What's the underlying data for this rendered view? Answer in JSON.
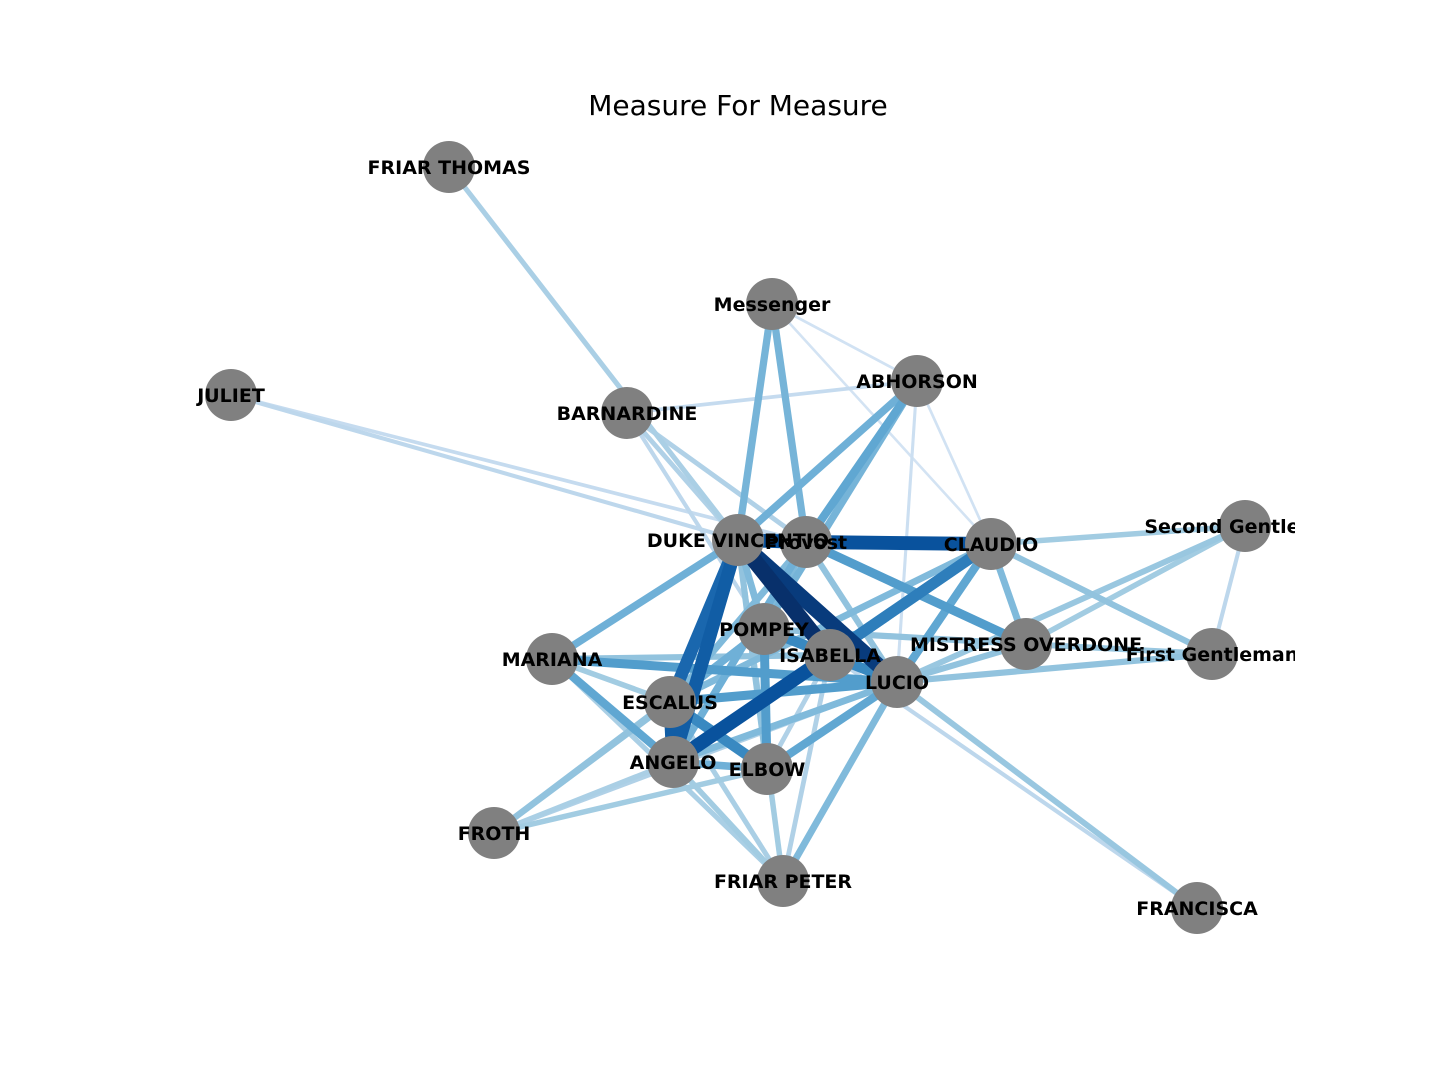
{
  "title": "Measure For Measure",
  "node_color": "#808080",
  "edge_colormap": "Blues",
  "nodes": [
    {
      "id": "FRIAR THOMAS",
      "label": "FRIAR THOMAS"
    },
    {
      "id": "Messenger",
      "label": "Messenger"
    },
    {
      "id": "ABHORSON",
      "label": "ABHORSON"
    },
    {
      "id": "JULIET",
      "label": "JULIET"
    },
    {
      "id": "BARNARDINE",
      "label": "BARNARDINE"
    },
    {
      "id": "DUKE VINCENTIO",
      "label": "DUKE VINCENTIO"
    },
    {
      "id": "Provost",
      "label": "Provost"
    },
    {
      "id": "CLAUDIO",
      "label": "CLAUDIO"
    },
    {
      "id": "Second Gentleman",
      "label": "Second Gentleman"
    },
    {
      "id": "POMPEY",
      "label": "POMPEY"
    },
    {
      "id": "ISABELLA",
      "label": "ISABELLA"
    },
    {
      "id": "MISTRESS OVERDONE",
      "label": "MISTRESS OVERDONE"
    },
    {
      "id": "First Gentleman",
      "label": "First Gentleman"
    },
    {
      "id": "MARIANA",
      "label": "MARIANA"
    },
    {
      "id": "LUCIO",
      "label": "LUCIO"
    },
    {
      "id": "ESCALUS",
      "label": "ESCALUS"
    },
    {
      "id": "ANGELO",
      "label": "ANGELO"
    },
    {
      "id": "ELBOW",
      "label": "ELBOW"
    },
    {
      "id": "FROTH",
      "label": "FROTH"
    },
    {
      "id": "FRIAR PETER",
      "label": "FRIAR PETER"
    },
    {
      "id": "FRANCISCA",
      "label": "FRANCISCA"
    }
  ],
  "edges": [
    {
      "source": "DUKE VINCENTIO",
      "target": "ISABELLA",
      "weight": 1.0
    },
    {
      "source": "DUKE VINCENTIO",
      "target": "LUCIO",
      "weight": 0.95
    },
    {
      "source": "Provost",
      "target": "CLAUDIO",
      "weight": 0.85
    },
    {
      "source": "ANGELO",
      "target": "ISABELLA",
      "weight": 0.85
    },
    {
      "source": "ANGELO",
      "target": "ESCALUS",
      "weight": 0.8
    },
    {
      "source": "DUKE VINCENTIO",
      "target": "Provost",
      "weight": 0.85
    },
    {
      "source": "DUKE VINCENTIO",
      "target": "ANGELO",
      "weight": 0.8
    },
    {
      "source": "ESCALUS",
      "target": "DUKE VINCENTIO",
      "weight": 0.75
    },
    {
      "source": "ANGELO",
      "target": "CLAUDIO",
      "weight": 0.65
    },
    {
      "source": "ESCALUS",
      "target": "ELBOW",
      "weight": 0.6
    },
    {
      "source": "POMPEY",
      "target": "LUCIO",
      "weight": 0.6
    },
    {
      "source": "ISABELLA",
      "target": "CLAUDIO",
      "weight": 0.6
    },
    {
      "source": "MARIANA",
      "target": "LUCIO",
      "weight": 0.5
    },
    {
      "source": "Provost",
      "target": "MISTRESS OVERDONE",
      "weight": 0.5
    },
    {
      "source": "ESCALUS",
      "target": "LUCIO",
      "weight": 0.5
    },
    {
      "source": "DUKE VINCENTIO",
      "target": "MARIANA",
      "weight": 0.4
    },
    {
      "source": "MARIANA",
      "target": "ANGELO",
      "weight": 0.45
    },
    {
      "source": "ELBOW",
      "target": "LUCIO",
      "weight": 0.45
    },
    {
      "source": "ELBOW",
      "target": "POMPEY",
      "weight": 0.5
    },
    {
      "source": "Provost",
      "target": "ABHORSON",
      "weight": 0.45
    },
    {
      "source": "DUKE VINCENTIO",
      "target": "ABHORSON",
      "weight": 0.4
    },
    {
      "source": "Messenger",
      "target": "DUKE VINCENTIO",
      "weight": 0.38
    },
    {
      "source": "Messenger",
      "target": "Provost",
      "weight": 0.38
    },
    {
      "source": "POMPEY",
      "target": "ABHORSON",
      "weight": 0.38
    },
    {
      "source": "CLAUDIO",
      "target": "LUCIO",
      "weight": 0.45
    },
    {
      "source": "CLAUDIO",
      "target": "MISTRESS OVERDONE",
      "weight": 0.35
    },
    {
      "source": "LUCIO",
      "target": "FRIAR PETER",
      "weight": 0.35
    },
    {
      "source": "LUCIO",
      "target": "First Gentleman",
      "weight": 0.3
    },
    {
      "source": "LUCIO",
      "target": "Second Gentleman",
      "weight": 0.28
    },
    {
      "source": "CLAUDIO",
      "target": "First Gentleman",
      "weight": 0.3
    },
    {
      "source": "CLAUDIO",
      "target": "Second Gentleman",
      "weight": 0.25
    },
    {
      "source": "LUCIO",
      "target": "FRANCISCA",
      "weight": 0.28
    },
    {
      "source": "MISTRESS OVERDONE",
      "target": "First Gentleman",
      "weight": 0.28
    },
    {
      "source": "MISTRESS OVERDONE",
      "target": "Second Gentleman",
      "weight": 0.25
    },
    {
      "source": "ESCALUS",
      "target": "FROTH",
      "weight": 0.3
    },
    {
      "source": "POMPEY",
      "target": "FROTH",
      "weight": 0.3
    },
    {
      "source": "ELBOW",
      "target": "FROTH",
      "weight": 0.25
    },
    {
      "source": "FRIAR THOMAS",
      "target": "DUKE VINCENTIO",
      "weight": 0.22
    },
    {
      "source": "BARNARDINE",
      "target": "DUKE VINCENTIO",
      "weight": 0.2
    },
    {
      "source": "BARNARDINE",
      "target": "Provost",
      "weight": 0.2
    },
    {
      "source": "BARNARDINE",
      "target": "ABHORSON",
      "weight": 0.12
    },
    {
      "source": "BARNARDINE",
      "target": "POMPEY",
      "weight": 0.15
    },
    {
      "source": "JULIET",
      "target": "DUKE VINCENTIO",
      "weight": 0.15
    },
    {
      "source": "JULIET",
      "target": "Provost",
      "weight": 0.12
    },
    {
      "source": "MARIANA",
      "target": "ISABELLA",
      "weight": 0.3
    },
    {
      "source": "MARIANA",
      "target": "FRIAR PETER",
      "weight": 0.22
    },
    {
      "source": "ANGELO",
      "target": "FRIAR PETER",
      "weight": 0.25
    },
    {
      "source": "ESCALUS",
      "target": "FRIAR PETER",
      "weight": 0.22
    },
    {
      "source": "DUKE VINCENTIO",
      "target": "FRIAR PETER",
      "weight": 0.25
    },
    {
      "source": "ISABELLA",
      "target": "FRIAR PETER",
      "weight": 0.2
    },
    {
      "source": "ANGELO",
      "target": "Provost",
      "weight": 0.4
    },
    {
      "source": "ESCALUS",
      "target": "Provost",
      "weight": 0.35
    },
    {
      "source": "ESCALUS",
      "target": "CLAUDIO",
      "weight": 0.35
    },
    {
      "source": "ANGELO",
      "target": "LUCIO",
      "weight": 0.35
    },
    {
      "source": "ESCALUS",
      "target": "POMPEY",
      "weight": 0.4
    },
    {
      "source": "ANGELO",
      "target": "ELBOW",
      "weight": 0.4
    },
    {
      "source": "POMPEY",
      "target": "MISTRESS OVERDONE",
      "weight": 0.3
    },
    {
      "source": "LUCIO",
      "target": "MISTRESS OVERDONE",
      "weight": 0.3
    },
    {
      "source": "ESCALUS",
      "target": "MARIANA",
      "weight": 0.25
    },
    {
      "source": "ANGELO",
      "target": "FROTH",
      "weight": 0.22
    },
    {
      "source": "FROTH",
      "target": "LUCIO",
      "weight": 0.2
    },
    {
      "source": "ISABELLA",
      "target": "LUCIO",
      "weight": 0.5
    },
    {
      "source": "Provost",
      "target": "LUCIO",
      "weight": 0.3
    },
    {
      "source": "Provost",
      "target": "POMPEY",
      "weight": 0.35
    },
    {
      "source": "ABHORSON",
      "target": "CLAUDIO",
      "weight": 0.05
    },
    {
      "source": "ABHORSON",
      "target": "LUCIO",
      "weight": 0.08
    },
    {
      "source": "Messenger",
      "target": "ABHORSON",
      "weight": 0.05
    },
    {
      "source": "Messenger",
      "target": "CLAUDIO",
      "weight": 0.04
    },
    {
      "source": "Second Gentleman",
      "target": "First Gentleman",
      "weight": 0.15
    },
    {
      "source": "FRANCISCA",
      "target": "ISABELLA",
      "weight": 0.15
    },
    {
      "source": "ELBOW",
      "target": "ISABELLA",
      "weight": 0.2
    },
    {
      "source": "ELBOW",
      "target": "FRIAR PETER",
      "weight": 0.1
    },
    {
      "source": "DUKE VINCENTIO",
      "target": "ELBOW",
      "weight": 0.3
    },
    {
      "source": "DUKE VINCENTIO",
      "target": "POMPEY",
      "weight": 0.35
    }
  ]
}
